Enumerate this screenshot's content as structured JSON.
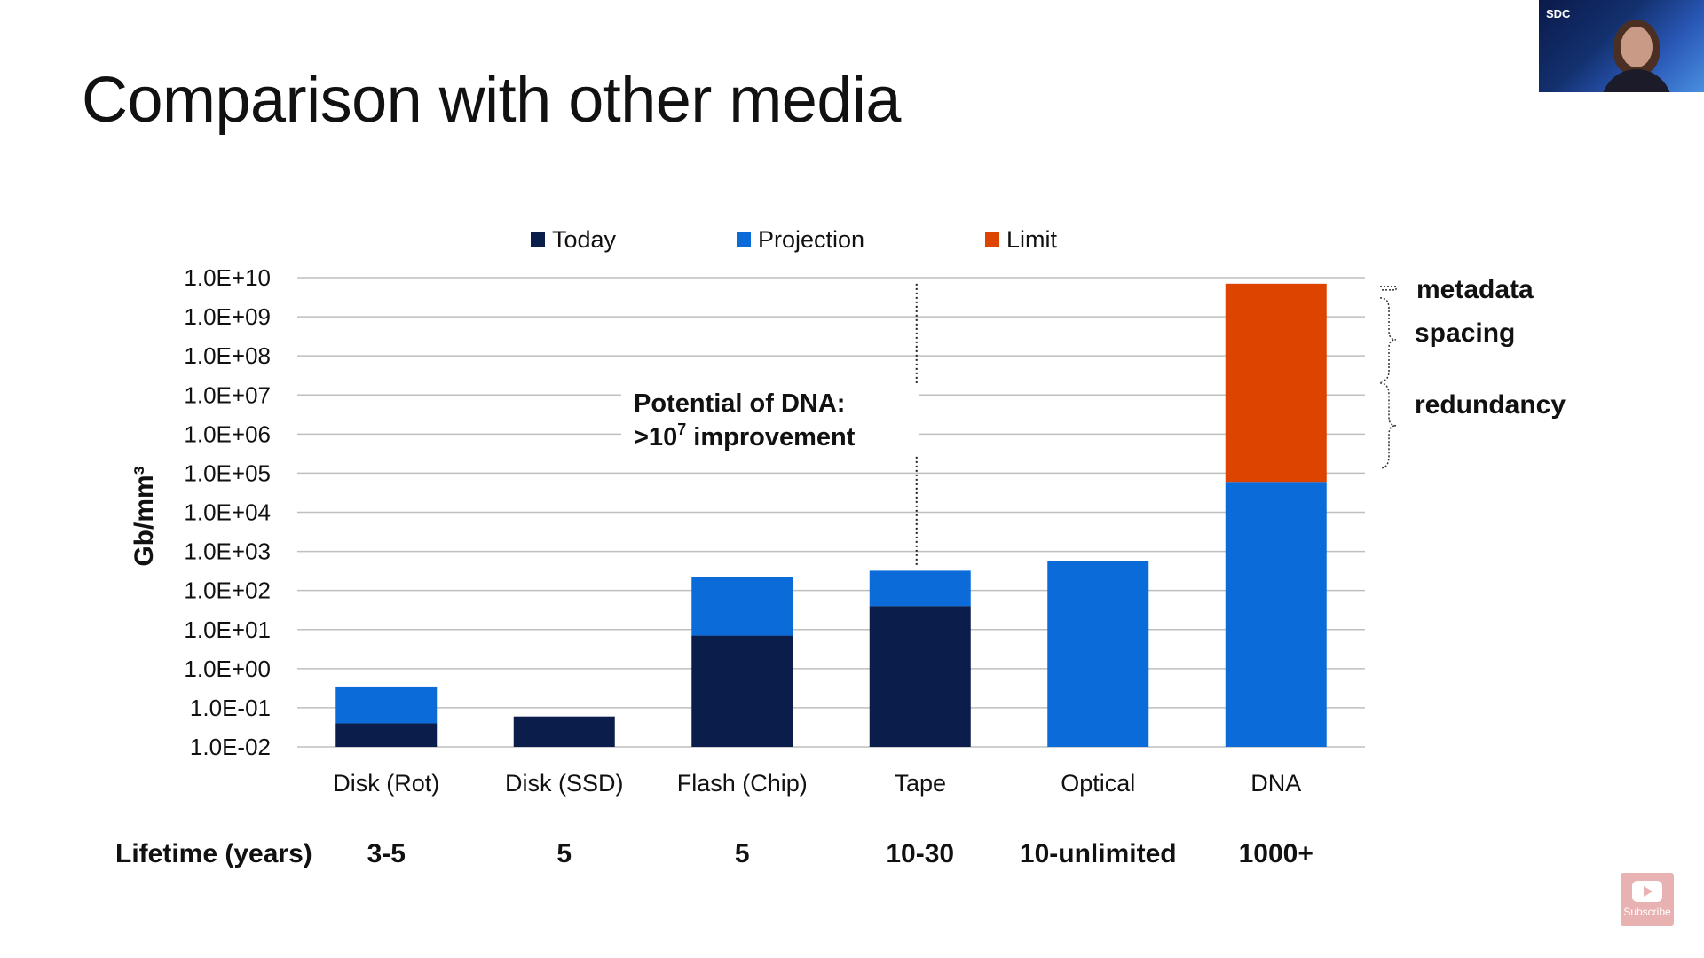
{
  "slide": {
    "title": "Comparison with other media"
  },
  "presenter_cam": {
    "logo_text": "SDC"
  },
  "subscribe": {
    "label": "Subscribe"
  },
  "colors": {
    "today": "#0a1d4b",
    "projection": "#0a6bd9",
    "limit": "#dd4400",
    "grid": "#bfbfbf",
    "text": "#111111"
  },
  "chart_data": {
    "type": "bar",
    "stacked": true,
    "log_scale": true,
    "ylabel": "Gb/mm³",
    "ylim": [
      0.01,
      10000000000
    ],
    "y_tick_labels": [
      "1.0E+10",
      "1.0E+09",
      "1.0E+08",
      "1.0E+07",
      "1.0E+06",
      "1.0E+05",
      "1.0E+04",
      "1.0E+03",
      "1.0E+02",
      "1.0E+01",
      "1.0E+00",
      "1.0E-01",
      "1.0E-02"
    ],
    "y_tick_values": [
      10000000000,
      1000000000,
      100000000,
      10000000,
      1000000,
      100000,
      10000,
      1000,
      100,
      10,
      1,
      0.1,
      0.01
    ],
    "legend_position": "top",
    "grid": true,
    "categories": [
      "Disk (Rot)",
      "Disk (SSD)",
      "Flash (Chip)",
      "Tape",
      "Optical",
      "DNA"
    ],
    "series": [
      {
        "name": "Today",
        "color_key": "today",
        "values": [
          0.04,
          0.06,
          7,
          40,
          null,
          null
        ]
      },
      {
        "name": "Projection",
        "color_key": "projection",
        "values": [
          0.35,
          null,
          220,
          320,
          560,
          60000
        ]
      },
      {
        "name": "Limit",
        "color_key": "limit",
        "values": [
          null,
          null,
          null,
          null,
          null,
          7000000000
        ]
      }
    ],
    "lifetime": {
      "label": "Lifetime (years)",
      "values": [
        "3-5",
        "5",
        "5",
        "10-30",
        "10-unlimited",
        "1000+"
      ]
    },
    "annotation": {
      "line1": "Potential of DNA:",
      "line2_prefix": ">10",
      "line2_sup": "7",
      "line2_suffix": " improvement",
      "from_value": 320,
      "to_value": 7000000000
    },
    "brace_labels": {
      "metadata": "metadata",
      "spacing": "spacing",
      "redundancy": "redundancy"
    }
  }
}
